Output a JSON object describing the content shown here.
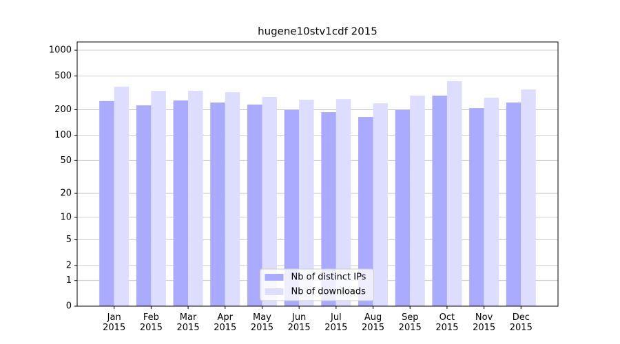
{
  "chart_data": {
    "type": "bar",
    "title": "hugene10stv1cdf 2015",
    "categories": [
      "Jan\n2015",
      "Feb\n2015",
      "Mar\n2015",
      "Apr\n2015",
      "May\n2015",
      "Jun\n2015",
      "Jul\n2015",
      "Aug\n2015",
      "Sep\n2015",
      "Oct\n2015",
      "Nov\n2015",
      "Dec\n2015"
    ],
    "series": [
      {
        "name": "Nb of distinct IPs",
        "color": "#aaaaff",
        "values": [
          253,
          225,
          257,
          243,
          230,
          198,
          187,
          164,
          198,
          293,
          209,
          243
        ]
      },
      {
        "name": "Nb of downloads",
        "color": "#ddddff",
        "values": [
          373,
          333,
          333,
          321,
          282,
          262,
          266,
          238,
          293,
          433,
          277,
          346
        ]
      }
    ],
    "yscale": "symlog",
    "ylim": [
      0,
      1250
    ],
    "yticks": [
      0,
      1,
      2,
      5,
      10,
      20,
      50,
      100,
      200,
      500,
      1000
    ],
    "grid": true,
    "legend": "lower center"
  }
}
